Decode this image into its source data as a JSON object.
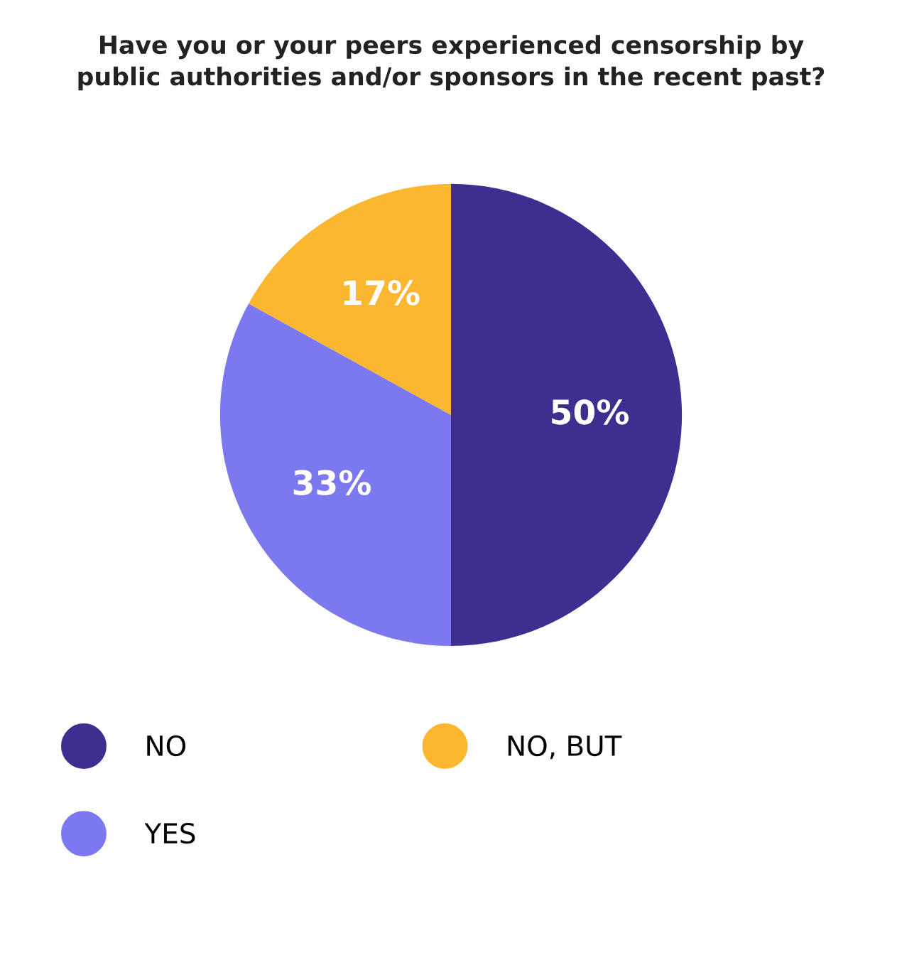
{
  "chart_data": {
    "type": "pie",
    "title": "Have you or your peers experienced censorship by\npublic authorities and/or sponsors in the recent past?",
    "categories": [
      "NO",
      "YES",
      "NO, BUT"
    ],
    "values": [
      50,
      33,
      17
    ],
    "colors": [
      "#3f2d8f",
      "#7b78f0",
      "#fbb72f"
    ],
    "value_labels": [
      "50%",
      "33%",
      "17%"
    ],
    "legend": "bottom"
  }
}
